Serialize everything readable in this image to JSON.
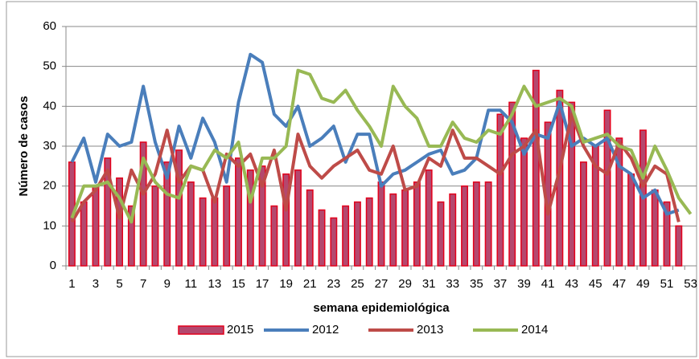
{
  "chart_data": {
    "type": "bar_line",
    "y_label": "Número de casos",
    "x_label": "semana epidemiológica",
    "categories": [
      1,
      null,
      3,
      null,
      5,
      null,
      7,
      null,
      9,
      null,
      11,
      null,
      13,
      null,
      15,
      null,
      17,
      null,
      19,
      null,
      21,
      null,
      23,
      null,
      25,
      null,
      27,
      null,
      29,
      null,
      31,
      null,
      33,
      null,
      35,
      null,
      37,
      null,
      39,
      null,
      41,
      null,
      43,
      null,
      45,
      null,
      47,
      null,
      49,
      null,
      51,
      null,
      53
    ],
    "series": [
      {
        "name": "2015",
        "kind": "bar",
        "color": "#b4486e",
        "edge": "#e3001b",
        "values": [
          26,
          16,
          20,
          27,
          22,
          15,
          31,
          20,
          26,
          29,
          21,
          17,
          17,
          20,
          27,
          24,
          25,
          15,
          23,
          24,
          19,
          14,
          12,
          15,
          16,
          17,
          21,
          18,
          19,
          21,
          24,
          16,
          18,
          20,
          21,
          21,
          38,
          41,
          32,
          49,
          36,
          44,
          41,
          26,
          30,
          39,
          32,
          23,
          34,
          19,
          16,
          10,
          null
        ]
      },
      {
        "name": "2012",
        "kind": "line",
        "color": "#4a7ebb",
        "values": [
          26,
          32,
          21,
          33,
          30,
          31,
          45,
          31,
          22,
          35,
          27,
          37,
          31,
          21,
          41,
          53,
          51,
          38,
          35,
          40,
          30,
          32,
          35,
          26,
          33,
          33,
          20,
          23,
          24,
          26,
          28,
          29,
          23,
          24,
          27,
          39,
          39,
          36,
          28,
          33,
          32,
          41,
          30,
          32,
          30,
          32,
          25,
          23,
          17,
          19,
          13,
          14,
          null
        ]
      },
      {
        "name": "2013",
        "kind": "line",
        "color": "#be4b48",
        "values": [
          11,
          16,
          19,
          24,
          12,
          24,
          18,
          23,
          34,
          21,
          25,
          24,
          16,
          28,
          25,
          28,
          20,
          29,
          14,
          33,
          25,
          22,
          25,
          27,
          29,
          24,
          23,
          30,
          19,
          20,
          27,
          25,
          34,
          27,
          27,
          25,
          23,
          28,
          30,
          34,
          13,
          24,
          38,
          30,
          25,
          23,
          31,
          27,
          20,
          25,
          23,
          11,
          null
        ]
      },
      {
        "name": "2014",
        "kind": "line",
        "color": "#98b954",
        "values": [
          12,
          20,
          20,
          21,
          17,
          11,
          27,
          21,
          18,
          17,
          25,
          24,
          29,
          27,
          31,
          16,
          27,
          27,
          30,
          49,
          48,
          42,
          41,
          44,
          39,
          35,
          30,
          45,
          40,
          37,
          30,
          30,
          36,
          32,
          31,
          34,
          33,
          38,
          45,
          40,
          41,
          42,
          40,
          31,
          32,
          33,
          30,
          29,
          22,
          30,
          24,
          17,
          13
        ]
      }
    ],
    "ylim": [
      0,
      60
    ],
    "yticks": [
      0,
      10,
      20,
      30,
      40,
      50,
      60
    ],
    "grid": true
  }
}
